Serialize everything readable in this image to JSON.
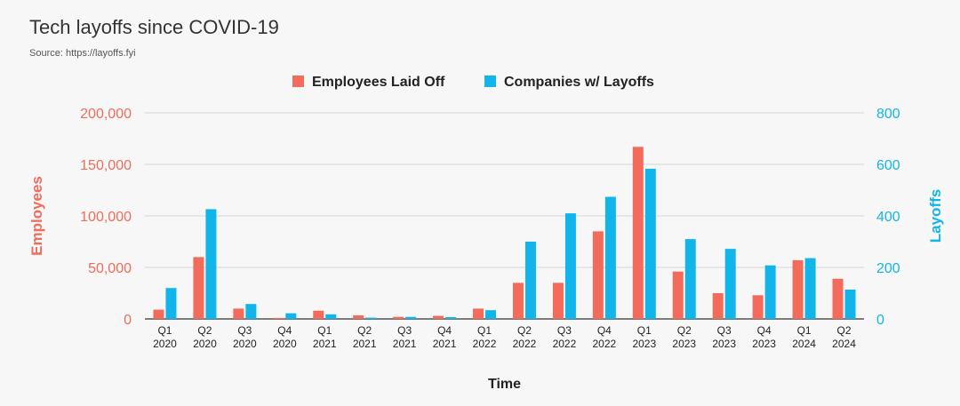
{
  "title": "Tech layoffs since COVID-19",
  "subtitle": "Source: https://layoffs.fyi",
  "chart_data": {
    "type": "bar",
    "xlabel": "Time",
    "ylabel_left": "Employees",
    "ylabel_right": "Layoffs",
    "ylim_left": [
      0,
      200000
    ],
    "ylim_right": [
      0,
      800
    ],
    "yticks_left": [
      "0",
      "50,000",
      "100,000",
      "150,000",
      "200,000"
    ],
    "yticks_left_values": [
      0,
      50000,
      100000,
      150000,
      200000
    ],
    "yticks_right": [
      "0",
      "200",
      "400",
      "600",
      "800"
    ],
    "yticks_right_values": [
      0,
      200,
      400,
      600,
      800
    ],
    "grid": true,
    "legend_position": "top-center",
    "categories": [
      {
        "q": "Q1",
        "y": "2020"
      },
      {
        "q": "Q2",
        "y": "2020"
      },
      {
        "q": "Q3",
        "y": "2020"
      },
      {
        "q": "Q4",
        "y": "2020"
      },
      {
        "q": "Q1",
        "y": "2021"
      },
      {
        "q": "Q2",
        "y": "2021"
      },
      {
        "q": "Q3",
        "y": "2021"
      },
      {
        "q": "Q4",
        "y": "2021"
      },
      {
        "q": "Q1",
        "y": "2022"
      },
      {
        "q": "Q2",
        "y": "2022"
      },
      {
        "q": "Q3",
        "y": "2022"
      },
      {
        "q": "Q4",
        "y": "2022"
      },
      {
        "q": "Q1",
        "y": "2023"
      },
      {
        "q": "Q2",
        "y": "2023"
      },
      {
        "q": "Q3",
        "y": "2023"
      },
      {
        "q": "Q4",
        "y": "2023"
      },
      {
        "q": "Q1",
        "y": "2024"
      },
      {
        "q": "Q2",
        "y": "2024"
      }
    ],
    "series": [
      {
        "name": "Employees Laid Off",
        "axis": "left",
        "color": "#f26b5b",
        "values": [
          9000,
          60000,
          10000,
          1000,
          8000,
          3500,
          2000,
          3000,
          10000,
          35000,
          35000,
          85000,
          167000,
          46000,
          25000,
          23000,
          57000,
          39000
        ]
      },
      {
        "name": "Companies w/ Layoffs",
        "axis": "right",
        "color": "#12b5ea",
        "values": [
          120,
          426,
          58,
          22,
          18,
          5,
          8,
          7,
          34,
          300,
          410,
          474,
          583,
          310,
          272,
          208,
          236,
          114
        ]
      }
    ]
  },
  "colors": {
    "left_axis": "#f26b5b",
    "right_axis": "#12b5ea",
    "grid": "#d4d4d4",
    "baseline": "#333333"
  }
}
